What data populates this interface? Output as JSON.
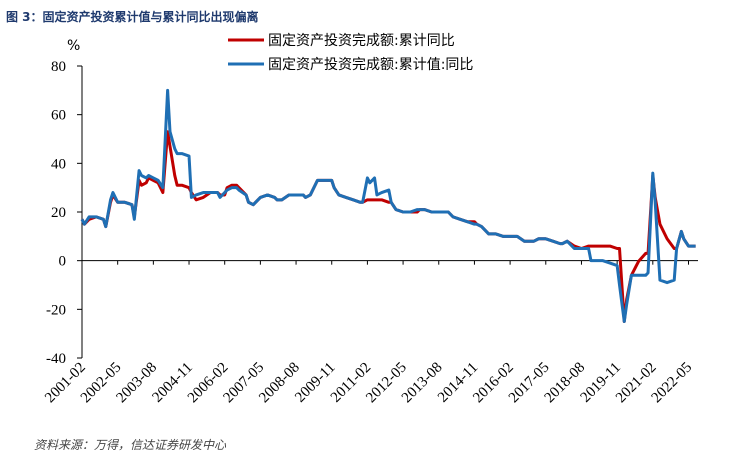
{
  "figure": {
    "title": "图 3：固定资产投资累计值与累计同比出现偏离",
    "footnote": "资料来源：万得，信达证券研发中心"
  },
  "chart_data": {
    "type": "line",
    "title": "",
    "xlabel": "",
    "ylabel": "%",
    "ylim": [
      -40,
      80
    ],
    "yticks": [
      -40,
      -20,
      0,
      20,
      40,
      60,
      80
    ],
    "x_axis_type": "month",
    "xlim": [
      "2001-02",
      "2022-09"
    ],
    "xticks": [
      "2001-02",
      "2002-05",
      "2003-08",
      "2004-11",
      "2006-02",
      "2007-05",
      "2008-08",
      "2009-11",
      "2011-02",
      "2012-05",
      "2013-08",
      "2014-11",
      "2016-02",
      "2017-05",
      "2018-08",
      "2019-11",
      "2021-02",
      "2022-05"
    ],
    "grid": false,
    "legend_position": "top",
    "series": [
      {
        "name": "固定资产投资完成额:累计同比",
        "color": "#c00000",
        "points": [
          [
            "2001-02",
            17
          ],
          [
            "2001-03",
            15
          ],
          [
            "2001-05",
            17
          ],
          [
            "2001-08",
            18
          ],
          [
            "2001-11",
            17
          ],
          [
            "2001-12",
            14
          ],
          [
            "2002-02",
            24
          ],
          [
            "2002-03",
            27
          ],
          [
            "2002-05",
            24
          ],
          [
            "2002-08",
            24
          ],
          [
            "2002-11",
            23
          ],
          [
            "2002-12",
            18
          ],
          [
            "2003-02",
            33
          ],
          [
            "2003-03",
            31
          ],
          [
            "2003-05",
            32
          ],
          [
            "2003-06",
            34
          ],
          [
            "2003-08",
            33
          ],
          [
            "2003-10",
            32
          ],
          [
            "2003-12",
            28
          ],
          [
            "2004-02",
            53
          ],
          [
            "2004-03",
            47
          ],
          [
            "2004-05",
            35
          ],
          [
            "2004-06",
            31
          ],
          [
            "2004-08",
            31
          ],
          [
            "2004-11",
            30
          ],
          [
            "2004-12",
            28
          ],
          [
            "2005-02",
            25
          ],
          [
            "2005-05",
            26
          ],
          [
            "2005-08",
            28
          ],
          [
            "2005-11",
            28
          ],
          [
            "2005-12",
            27
          ],
          [
            "2006-02",
            27
          ],
          [
            "2006-03",
            30
          ],
          [
            "2006-05",
            31
          ],
          [
            "2006-07",
            31
          ],
          [
            "2006-08",
            30
          ],
          [
            "2006-11",
            27
          ],
          [
            "2006-12",
            24
          ],
          [
            "2007-02",
            23
          ],
          [
            "2007-05",
            26
          ],
          [
            "2007-08",
            27
          ],
          [
            "2007-11",
            26
          ],
          [
            "2007-12",
            25
          ],
          [
            "2008-02",
            25
          ],
          [
            "2008-05",
            27
          ],
          [
            "2008-08",
            27
          ],
          [
            "2008-11",
            27
          ],
          [
            "2008-12",
            26
          ],
          [
            "2009-02",
            27
          ],
          [
            "2009-05",
            33
          ],
          [
            "2009-08",
            33
          ],
          [
            "2009-11",
            33
          ],
          [
            "2009-12",
            30
          ],
          [
            "2010-02",
            27
          ],
          [
            "2010-05",
            26
          ],
          [
            "2010-08",
            25
          ],
          [
            "2010-11",
            24
          ],
          [
            "2010-12",
            24
          ],
          [
            "2011-02",
            25
          ],
          [
            "2011-05",
            25
          ],
          [
            "2011-08",
            25
          ],
          [
            "2011-11",
            24
          ],
          [
            "2011-12",
            24
          ],
          [
            "2012-02",
            21
          ],
          [
            "2012-05",
            20
          ],
          [
            "2012-08",
            20
          ],
          [
            "2012-11",
            20
          ],
          [
            "2012-12",
            21
          ],
          [
            "2013-02",
            21
          ],
          [
            "2013-05",
            20
          ],
          [
            "2013-08",
            20
          ],
          [
            "2013-11",
            20
          ],
          [
            "2013-12",
            20
          ],
          [
            "2014-02",
            18
          ],
          [
            "2014-05",
            17
          ],
          [
            "2014-08",
            16
          ],
          [
            "2014-11",
            16
          ],
          [
            "2014-12",
            15
          ],
          [
            "2015-02",
            14
          ],
          [
            "2015-05",
            11
          ],
          [
            "2015-08",
            11
          ],
          [
            "2015-11",
            10
          ],
          [
            "2015-12",
            10
          ],
          [
            "2016-02",
            10
          ],
          [
            "2016-05",
            10
          ],
          [
            "2016-08",
            8
          ],
          [
            "2016-11",
            8
          ],
          [
            "2016-12",
            8
          ],
          [
            "2017-02",
            9
          ],
          [
            "2017-05",
            9
          ],
          [
            "2017-08",
            8
          ],
          [
            "2017-11",
            7
          ],
          [
            "2017-12",
            7
          ],
          [
            "2018-02",
            8
          ],
          [
            "2018-05",
            6
          ],
          [
            "2018-08",
            5
          ],
          [
            "2018-11",
            6
          ],
          [
            "2018-12",
            6
          ],
          [
            "2019-02",
            6
          ],
          [
            "2019-05",
            6
          ],
          [
            "2019-08",
            6
          ],
          [
            "2019-11",
            5
          ],
          [
            "2019-12",
            5
          ],
          [
            "2020-02",
            -25
          ],
          [
            "2020-03",
            -16
          ],
          [
            "2020-05",
            -6
          ],
          [
            "2020-08",
            -0.3
          ],
          [
            "2020-11",
            3
          ],
          [
            "2020-12",
            3
          ],
          [
            "2021-02",
            35
          ],
          [
            "2021-03",
            26
          ],
          [
            "2021-05",
            15
          ],
          [
            "2021-08",
            9
          ],
          [
            "2021-11",
            5
          ],
          [
            "2021-12",
            5
          ],
          [
            "2022-02",
            12
          ],
          [
            "2022-03",
            9
          ],
          [
            "2022-05",
            6
          ],
          [
            "2022-08",
            6
          ]
        ]
      },
      {
        "name": "固定资产投资完成额:累计值:同比",
        "color": "#1f6fb4",
        "points": [
          [
            "2001-02",
            17
          ],
          [
            "2001-03",
            15
          ],
          [
            "2001-05",
            18
          ],
          [
            "2001-08",
            18
          ],
          [
            "2001-11",
            17
          ],
          [
            "2001-12",
            14
          ],
          [
            "2002-02",
            25
          ],
          [
            "2002-03",
            28
          ],
          [
            "2002-05",
            24
          ],
          [
            "2002-08",
            24
          ],
          [
            "2002-11",
            23
          ],
          [
            "2002-12",
            17
          ],
          [
            "2003-02",
            37
          ],
          [
            "2003-03",
            35
          ],
          [
            "2003-05",
            34
          ],
          [
            "2003-06",
            35
          ],
          [
            "2003-08",
            34
          ],
          [
            "2003-10",
            33
          ],
          [
            "2003-12",
            30
          ],
          [
            "2004-02",
            70
          ],
          [
            "2004-03",
            53
          ],
          [
            "2004-05",
            46
          ],
          [
            "2004-06",
            44
          ],
          [
            "2004-08",
            44
          ],
          [
            "2004-11",
            43
          ],
          [
            "2004-12",
            26
          ],
          [
            "2005-02",
            27
          ],
          [
            "2005-05",
            28
          ],
          [
            "2005-08",
            28
          ],
          [
            "2005-11",
            28
          ],
          [
            "2005-12",
            26
          ],
          [
            "2006-02",
            28
          ],
          [
            "2006-03",
            29
          ],
          [
            "2006-05",
            30
          ],
          [
            "2006-07",
            30
          ],
          [
            "2006-08",
            29
          ],
          [
            "2006-11",
            27
          ],
          [
            "2006-12",
            24
          ],
          [
            "2007-02",
            23
          ],
          [
            "2007-05",
            26
          ],
          [
            "2007-08",
            27
          ],
          [
            "2007-11",
            26
          ],
          [
            "2007-12",
            25
          ],
          [
            "2008-02",
            25
          ],
          [
            "2008-05",
            27
          ],
          [
            "2008-08",
            27
          ],
          [
            "2008-11",
            27
          ],
          [
            "2008-12",
            26
          ],
          [
            "2009-02",
            27
          ],
          [
            "2009-05",
            33
          ],
          [
            "2009-08",
            33
          ],
          [
            "2009-11",
            33
          ],
          [
            "2009-12",
            30
          ],
          [
            "2010-02",
            27
          ],
          [
            "2010-05",
            26
          ],
          [
            "2010-08",
            25
          ],
          [
            "2010-11",
            24
          ],
          [
            "2010-12",
            24
          ],
          [
            "2011-02",
            34
          ],
          [
            "2011-03",
            32
          ],
          [
            "2011-05",
            34
          ],
          [
            "2011-06",
            27
          ],
          [
            "2011-08",
            28
          ],
          [
            "2011-11",
            29
          ],
          [
            "2011-12",
            24
          ],
          [
            "2012-02",
            21
          ],
          [
            "2012-05",
            20
          ],
          [
            "2012-08",
            20
          ],
          [
            "2012-11",
            21
          ],
          [
            "2012-12",
            21
          ],
          [
            "2013-02",
            21
          ],
          [
            "2013-05",
            20
          ],
          [
            "2013-08",
            20
          ],
          [
            "2013-11",
            20
          ],
          [
            "2013-12",
            20
          ],
          [
            "2014-02",
            18
          ],
          [
            "2014-05",
            17
          ],
          [
            "2014-08",
            16
          ],
          [
            "2014-11",
            15
          ],
          [
            "2014-12",
            15
          ],
          [
            "2015-02",
            14
          ],
          [
            "2015-05",
            11
          ],
          [
            "2015-08",
            11
          ],
          [
            "2015-11",
            10
          ],
          [
            "2015-12",
            10
          ],
          [
            "2016-02",
            10
          ],
          [
            "2016-05",
            10
          ],
          [
            "2016-08",
            8
          ],
          [
            "2016-11",
            8
          ],
          [
            "2016-12",
            8
          ],
          [
            "2017-02",
            9
          ],
          [
            "2017-05",
            9
          ],
          [
            "2017-08",
            8
          ],
          [
            "2017-11",
            7
          ],
          [
            "2017-12",
            7
          ],
          [
            "2018-02",
            8
          ],
          [
            "2018-05",
            5
          ],
          [
            "2018-08",
            5
          ],
          [
            "2018-11",
            5
          ],
          [
            "2018-12",
            0
          ],
          [
            "2019-02",
            0
          ],
          [
            "2019-05",
            0
          ],
          [
            "2019-08",
            -1
          ],
          [
            "2019-11",
            -2
          ],
          [
            "2019-12",
            -10
          ],
          [
            "2020-02",
            -25
          ],
          [
            "2020-03",
            -18
          ],
          [
            "2020-05",
            -6
          ],
          [
            "2020-08",
            -6
          ],
          [
            "2020-11",
            -6
          ],
          [
            "2020-12",
            -5
          ],
          [
            "2021-02",
            36
          ],
          [
            "2021-03",
            24
          ],
          [
            "2021-05",
            -8
          ],
          [
            "2021-08",
            -9
          ],
          [
            "2021-11",
            -8
          ],
          [
            "2021-12",
            5
          ],
          [
            "2022-02",
            12
          ],
          [
            "2022-03",
            9
          ],
          [
            "2022-05",
            6
          ],
          [
            "2022-08",
            6
          ]
        ]
      }
    ]
  }
}
